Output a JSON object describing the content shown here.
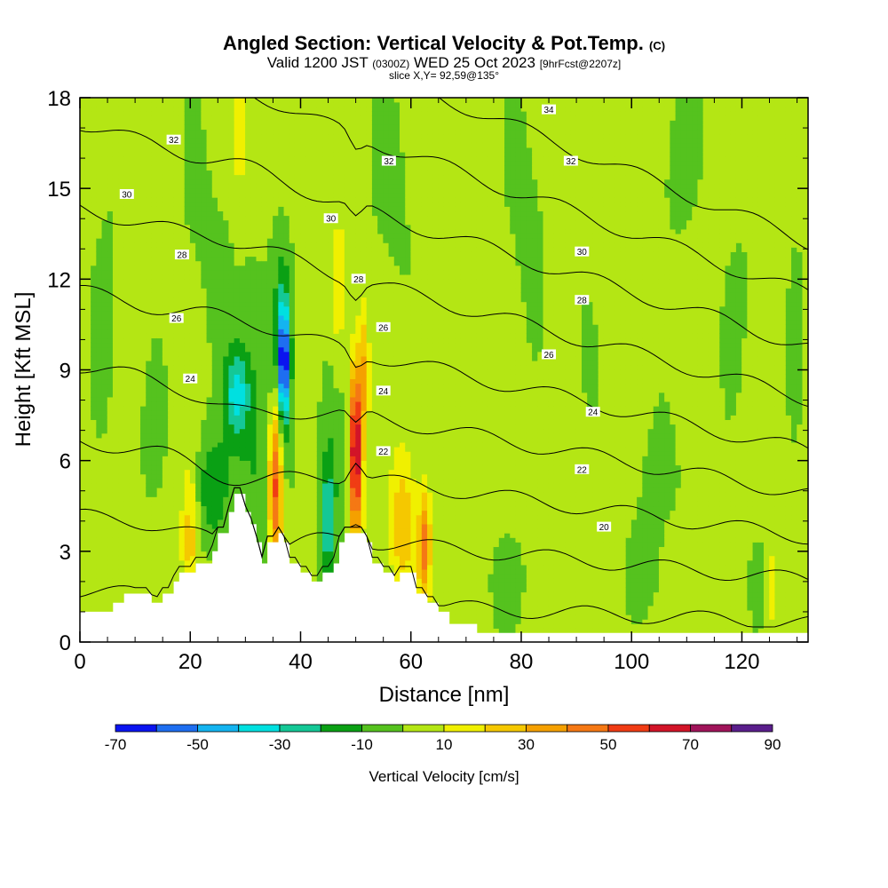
{
  "header": {
    "title": "Angled Section: Vertical Velocity & Pot.Temp.",
    "title_unit": "(C)",
    "valid_prefix": "Valid 1200 JST",
    "valid_utc": "(0300Z)",
    "valid_date": "WED 25 Oct 2023",
    "forecast": "[9hrFcst@2207z]",
    "slice": "slice X,Y= 92,59@135°"
  },
  "chart_data": {
    "type": "heatmap",
    "xlabel": "Distance [nm]",
    "ylabel": "Height [Kft MSL]",
    "xlim": [
      0,
      132
    ],
    "ylim": [
      0,
      18
    ],
    "xticks": [
      0,
      20,
      40,
      60,
      80,
      100,
      120
    ],
    "yticks": [
      0,
      3,
      6,
      9,
      12,
      15,
      18
    ],
    "colorbar": {
      "label": "Vertical Velocity [cm/s]",
      "tick_values": [
        -70,
        -50,
        -30,
        -10,
        10,
        30,
        50,
        70,
        90
      ],
      "levels": [
        -70,
        -60,
        -50,
        -40,
        -30,
        -20,
        -10,
        0,
        10,
        20,
        30,
        40,
        50,
        60,
        70,
        80,
        90
      ],
      "colors": [
        "#0a14f0",
        "#1e6ef0",
        "#14b4f0",
        "#00e0e0",
        "#14c896",
        "#0aa014",
        "#55c21e",
        "#b4e614",
        "#f0f000",
        "#f5c800",
        "#f5a000",
        "#f57814",
        "#f03c14",
        "#d21428",
        "#a0145a",
        "#5a1e8c"
      ]
    },
    "background_value": 5,
    "terrain": [
      [
        0,
        1.0
      ],
      [
        6,
        1.0
      ],
      [
        6,
        1.3
      ],
      [
        8,
        1.3
      ],
      [
        8,
        1.6
      ],
      [
        13,
        1.6
      ],
      [
        13,
        1.3
      ],
      [
        15,
        1.3
      ],
      [
        15,
        1.6
      ],
      [
        17,
        1.6
      ],
      [
        17,
        2.0
      ],
      [
        18,
        2.0
      ],
      [
        18,
        2.3
      ],
      [
        21,
        2.3
      ],
      [
        21,
        2.6
      ],
      [
        24,
        2.6
      ],
      [
        24,
        3.0
      ],
      [
        25,
        3.0
      ],
      [
        25,
        3.6
      ],
      [
        27,
        3.6
      ],
      [
        27,
        4.3
      ],
      [
        28,
        4.3
      ],
      [
        28,
        4.9
      ],
      [
        30,
        4.9
      ],
      [
        30,
        4.3
      ],
      [
        31,
        4.3
      ],
      [
        31,
        3.9
      ],
      [
        32,
        3.9
      ],
      [
        32,
        3.3
      ],
      [
        33,
        3.3
      ],
      [
        33,
        2.6
      ],
      [
        34,
        2.6
      ],
      [
        34,
        3.3
      ],
      [
        36,
        3.3
      ],
      [
        36,
        3.6
      ],
      [
        37,
        3.6
      ],
      [
        37,
        3.3
      ],
      [
        38,
        3.3
      ],
      [
        38,
        2.6
      ],
      [
        40,
        2.6
      ],
      [
        40,
        2.3
      ],
      [
        42,
        2.3
      ],
      [
        42,
        2.0
      ],
      [
        44,
        2.0
      ],
      [
        44,
        2.3
      ],
      [
        46,
        2.3
      ],
      [
        46,
        2.6
      ],
      [
        47,
        2.6
      ],
      [
        47,
        3.3
      ],
      [
        48,
        3.3
      ],
      [
        48,
        3.6
      ],
      [
        52,
        3.6
      ],
      [
        52,
        3.3
      ],
      [
        53,
        3.3
      ],
      [
        53,
        2.6
      ],
      [
        55,
        2.6
      ],
      [
        55,
        2.3
      ],
      [
        57,
        2.3
      ],
      [
        57,
        2.0
      ],
      [
        58,
        2.0
      ],
      [
        58,
        2.3
      ],
      [
        61,
        2.3
      ],
      [
        61,
        1.6
      ],
      [
        63,
        1.6
      ],
      [
        63,
        1.3
      ],
      [
        65,
        1.3
      ],
      [
        65,
        1.0
      ],
      [
        67,
        1.0
      ],
      [
        67,
        0.6
      ],
      [
        72,
        0.6
      ],
      [
        72,
        0.3
      ],
      [
        132,
        0.3
      ]
    ],
    "features": [
      {
        "x": 37,
        "y": 9.3,
        "sx": 0.6,
        "sy": 1.2,
        "v": -60
      },
      {
        "x": 36.8,
        "y": 9.8,
        "sx": 1.3,
        "sy": 2.6,
        "v": -22
      },
      {
        "x": 28.5,
        "y": 8.2,
        "sx": 1.6,
        "sy": 1.0,
        "v": -32
      },
      {
        "x": 24,
        "y": 5.0,
        "sx": 2.0,
        "sy": 1.3,
        "v": -22
      },
      {
        "x": 32,
        "y": 6.3,
        "sx": 3.5,
        "sy": 4.0,
        "v": -16
      },
      {
        "x": 46,
        "y": 6.0,
        "sx": 2.5,
        "sy": 3.2,
        "v": -14
      },
      {
        "x": 45,
        "y": 4.0,
        "sx": 0.7,
        "sy": 1.3,
        "v": -28
      },
      {
        "x": 35.5,
        "y": 5.3,
        "sx": 0.9,
        "sy": 2.0,
        "v": 58
      },
      {
        "x": 50,
        "y": 6.3,
        "sx": 0.8,
        "sy": 2.0,
        "v": 75
      },
      {
        "x": 62.5,
        "y": 3.2,
        "sx": 0.8,
        "sy": 1.2,
        "v": 44
      },
      {
        "x": 58.5,
        "y": 4.0,
        "sx": 1.4,
        "sy": 1.6,
        "v": 24
      },
      {
        "x": 20,
        "y": 3.5,
        "sx": 1.0,
        "sy": 1.5,
        "v": 22
      },
      {
        "x": 29,
        "y": 17.0,
        "sx": 0.9,
        "sy": 2.0,
        "v": 14
      },
      {
        "x": 47,
        "y": 11.0,
        "sx": 1.0,
        "sy": 2.2,
        "v": 14
      },
      {
        "x": 51.5,
        "y": 9.0,
        "sx": 0.6,
        "sy": 1.5,
        "v": 24
      },
      {
        "x": 57,
        "y": 15.5,
        "sx": 4.0,
        "sy": 3.5,
        "v": -7
      },
      {
        "x": 5,
        "y": 11.5,
        "sx": 3.0,
        "sy": 5.0,
        "v": -6
      },
      {
        "x": 23,
        "y": 14.0,
        "sx": 5.0,
        "sy": 4.0,
        "v": -6
      },
      {
        "x": 81,
        "y": 15.0,
        "sx": 3.5,
        "sy": 4.0,
        "v": -7
      },
      {
        "x": 108,
        "y": 16.0,
        "sx": 4.0,
        "sy": 3.0,
        "v": -7
      },
      {
        "x": 90,
        "y": 10.0,
        "sx": 3.0,
        "sy": 3.5,
        "v": -6
      },
      {
        "x": 105,
        "y": 5.5,
        "sx": 6.0,
        "sy": 2.0,
        "v": -6
      },
      {
        "x": 120,
        "y": 11.0,
        "sx": 3.0,
        "sy": 3.5,
        "v": -6
      },
      {
        "x": 78,
        "y": 2.0,
        "sx": 4.0,
        "sy": 1.5,
        "v": -7
      },
      {
        "x": 103,
        "y": 2.0,
        "sx": 3.0,
        "sy": 1.2,
        "v": -7
      },
      {
        "x": 123,
        "y": 2.0,
        "sx": 1.5,
        "sy": 1.2,
        "v": -7
      },
      {
        "x": 66,
        "y": 8.0,
        "sx": 3.0,
        "sy": 4.0,
        "v": -5
      },
      {
        "x": 13,
        "y": 6.5,
        "sx": 2.5,
        "sy": 2.5,
        "v": -6
      },
      {
        "x": 130,
        "y": 10.5,
        "sx": 1.5,
        "sy": 4.0,
        "v": -6
      },
      {
        "x": 125.5,
        "y": 1.8,
        "sx": 0.4,
        "sy": 0.8,
        "v": 15
      }
    ],
    "isentropes": {
      "levels": [
        18,
        20,
        22,
        24,
        26,
        28,
        30,
        32,
        34
      ],
      "labels": [
        {
          "text": "34",
          "x": 85,
          "y": 17.6
        },
        {
          "text": "32",
          "x": 17,
          "y": 16.6
        },
        {
          "text": "32",
          "x": 56,
          "y": 15.9
        },
        {
          "text": "32",
          "x": 89,
          "y": 15.9
        },
        {
          "text": "30",
          "x": 8.5,
          "y": 14.8
        },
        {
          "text": "30",
          "x": 45.5,
          "y": 14.0
        },
        {
          "text": "30",
          "x": 91,
          "y": 12.9
        },
        {
          "text": "28",
          "x": 18.5,
          "y": 12.8
        },
        {
          "text": "28",
          "x": 50.5,
          "y": 12.0
        },
        {
          "text": "28",
          "x": 91,
          "y": 11.3
        },
        {
          "text": "26",
          "x": 17.5,
          "y": 10.7
        },
        {
          "text": "26",
          "x": 55,
          "y": 10.4
        },
        {
          "text": "26",
          "x": 85,
          "y": 9.5
        },
        {
          "text": "24",
          "x": 20,
          "y": 8.7
        },
        {
          "text": "24",
          "x": 55,
          "y": 8.3
        },
        {
          "text": "24",
          "x": 93,
          "y": 7.6
        },
        {
          "text": "22",
          "x": 55,
          "y": 6.3
        },
        {
          "text": "22",
          "x": 91,
          "y": 5.7
        },
        {
          "text": "20",
          "x": 95,
          "y": 3.8
        }
      ]
    }
  }
}
